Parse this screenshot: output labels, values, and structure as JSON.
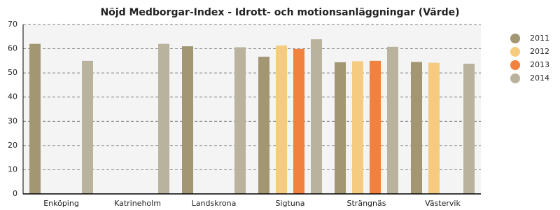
{
  "chart_data": {
    "type": "bar",
    "title": "Nöjd Medborgar-Index - Idrott- och motionsanläggningar (Värde)",
    "categories": [
      "Enköping",
      "Katrineholm",
      "Landskrona",
      "Sigtuna",
      "Strängnäs",
      "Västervik"
    ],
    "series": [
      {
        "name": "2011",
        "color": "#a39672",
        "values": [
          62,
          null,
          61,
          56.7,
          54.4,
          54.5
        ]
      },
      {
        "name": "2012",
        "color": "#f5cb7f",
        "values": [
          null,
          null,
          null,
          61.3,
          54.8,
          54.2
        ]
      },
      {
        "name": "2013",
        "color": "#f0813f",
        "values": [
          null,
          null,
          null,
          59.9,
          55,
          null
        ]
      },
      {
        "name": "2014",
        "color": "#b9b29d",
        "values": [
          55,
          62,
          60.6,
          63.9,
          60.8,
          53.8
        ]
      }
    ],
    "ylim": [
      0,
      70
    ],
    "yticks": [
      0,
      10,
      20,
      30,
      40,
      50,
      60,
      70
    ],
    "grid": true,
    "legend": "right"
  }
}
